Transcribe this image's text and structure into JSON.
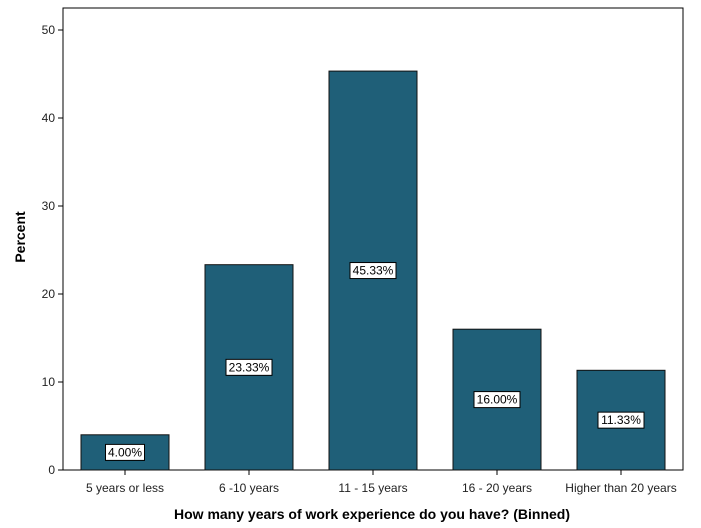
{
  "chart_data": {
    "type": "bar",
    "title": "",
    "xlabel": "How many years of work experience do you have? (Binned)",
    "ylabel": "Percent",
    "categories": [
      "5 years or less",
      "6 -10 years",
      "11 - 15 years",
      "16 - 20 years",
      "Higher than 20 years"
    ],
    "values": [
      4.0,
      23.33,
      45.33,
      16.0,
      11.33
    ],
    "data_labels": [
      "4.00%",
      "23.33%",
      "45.33%",
      "16.00%",
      "11.33%"
    ],
    "y_ticks": [
      "0",
      "10",
      "20",
      "30",
      "40",
      "50"
    ],
    "ylim": [
      0,
      50
    ],
    "grid": false,
    "legend": "none",
    "colors": {
      "bar_fill": "#1f5f78",
      "bar_stroke": "#101010",
      "axis": "#000000",
      "label_box_fill": "#ffffff",
      "label_box_stroke": "#000000"
    }
  }
}
